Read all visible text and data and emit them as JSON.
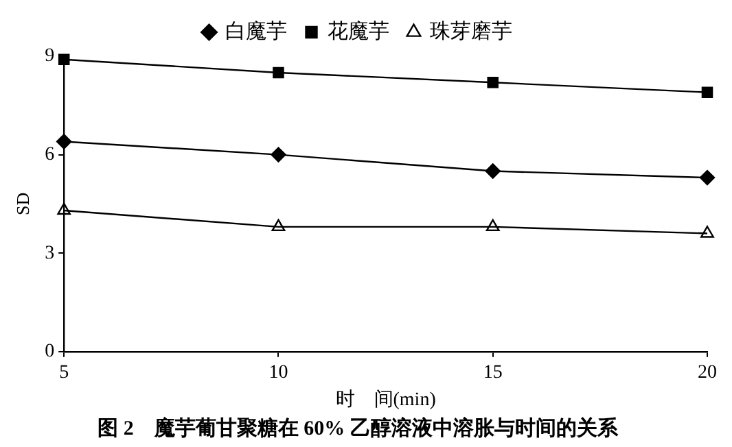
{
  "chart_data": {
    "type": "line",
    "title": "图 2　魔芋葡甘聚糖在 60% 乙醇溶液中溶胀与时间的关系",
    "xlabel": "时　间(min)",
    "ylabel": "SD",
    "x": [
      5,
      10,
      15,
      20
    ],
    "xlim": [
      5,
      20
    ],
    "xticks": [
      5,
      10,
      15,
      20
    ],
    "ylim": [
      0,
      9
    ],
    "yticks": [
      0,
      3,
      6,
      9
    ],
    "grid": false,
    "legend": "top",
    "line_style": "solid",
    "series": [
      {
        "name": "白魔芋",
        "color": "#000000",
        "marker": "diamond",
        "values": [
          6.4,
          6.0,
          5.5,
          5.3
        ]
      },
      {
        "name": "花魔芋",
        "color": "#000000",
        "marker": "square",
        "values": [
          8.9,
          8.5,
          8.2,
          7.9
        ]
      },
      {
        "name": "珠芽磨芋",
        "color": "#000000",
        "marker": "triangle",
        "values": [
          4.3,
          3.8,
          3.8,
          3.6
        ]
      }
    ]
  }
}
